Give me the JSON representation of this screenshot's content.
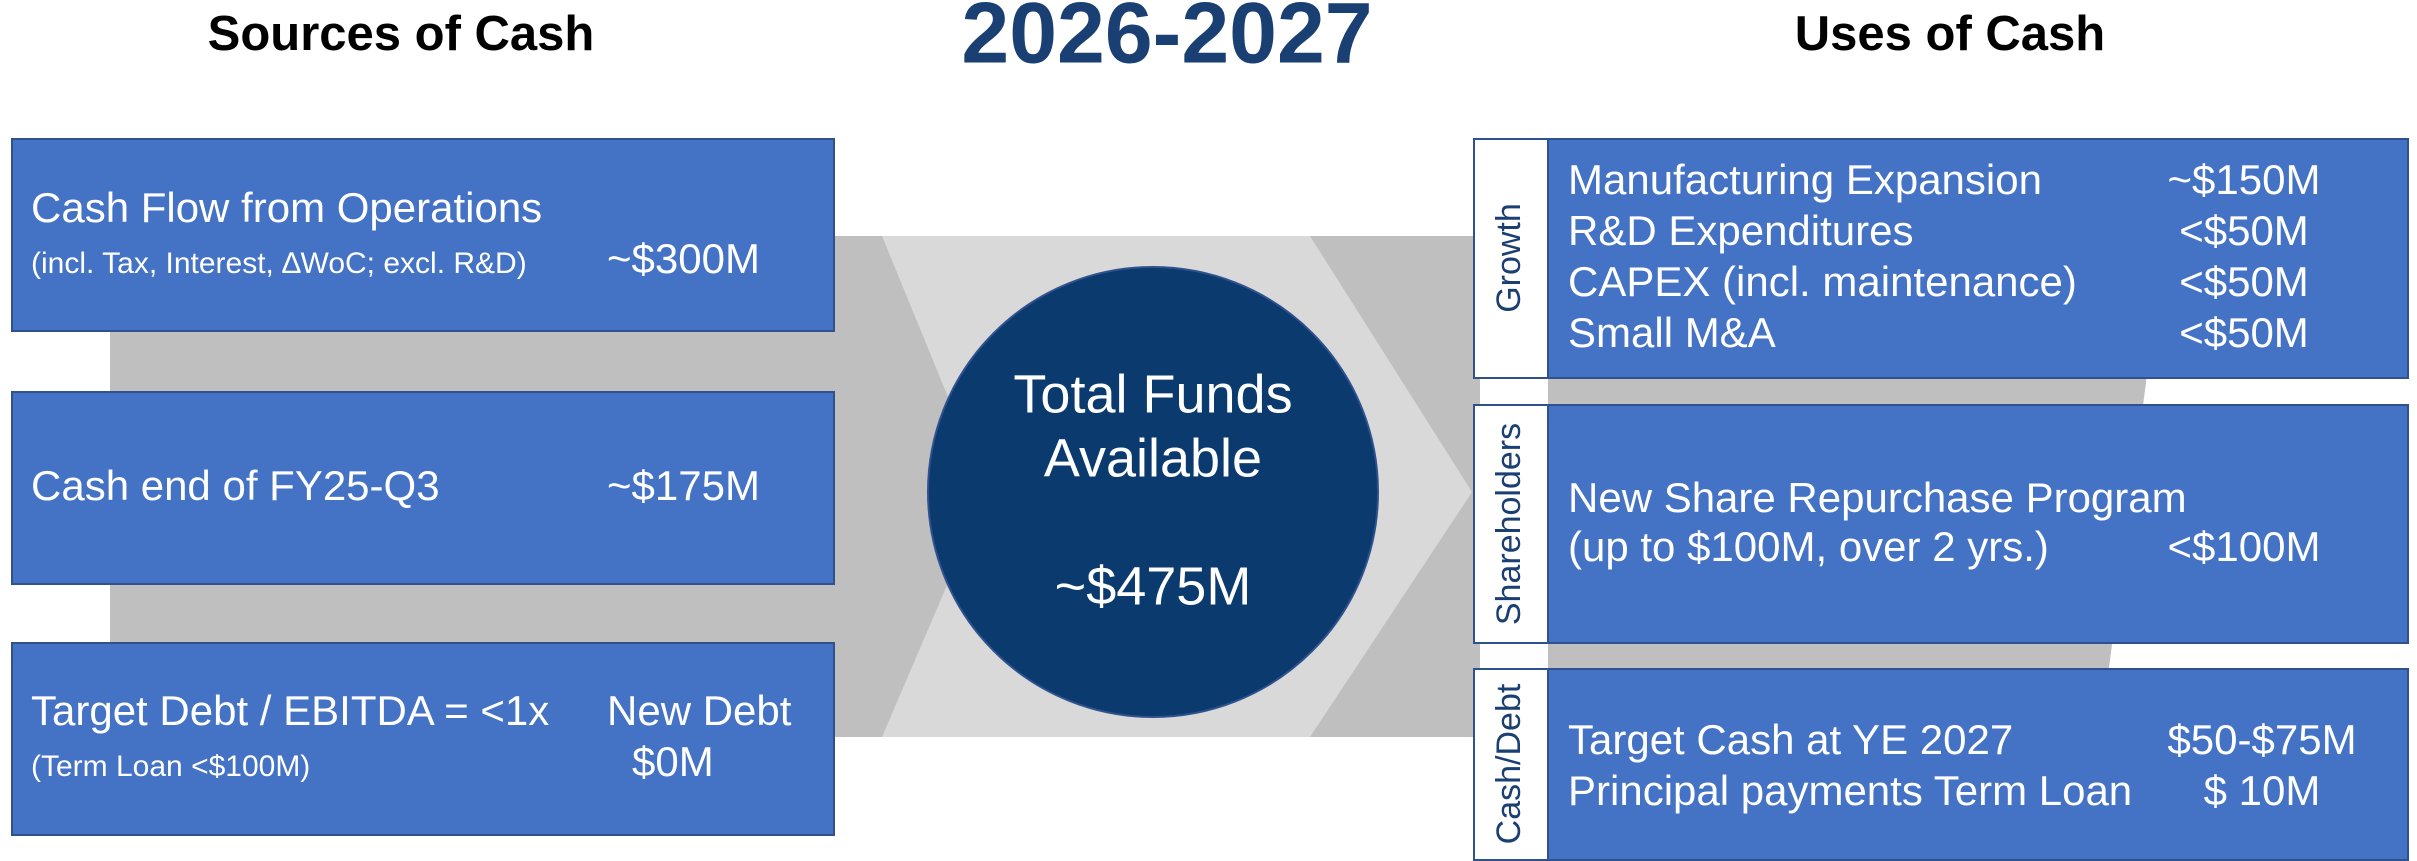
{
  "header": {
    "left_title": "Sources of Cash",
    "center_title": "2026-2027",
    "right_title": "Uses of Cash"
  },
  "sources": [
    {
      "label": "Cash Flow from Operations",
      "note": "(incl. Tax, Interest, ∆WoC; excl. R&D)",
      "amount": "~$300M"
    },
    {
      "label": "Cash end of FY25-Q3",
      "amount": "~$175M"
    },
    {
      "label": "Target Debt / EBITDA = <1x",
      "note": "(Term Loan <$100M)",
      "amount_label": "New Debt",
      "amount": "$0M"
    }
  ],
  "center": {
    "title_lines": [
      "Total Funds",
      "Available"
    ],
    "amount": "~$475M"
  },
  "uses": [
    {
      "category": "Growth",
      "items": [
        {
          "label": "Manufacturing Expansion",
          "amount": "~$150M"
        },
        {
          "label": "R&D Expenditures",
          "amount": "<$50M"
        },
        {
          "label": "CAPEX (incl. maintenance)",
          "amount": "<$50M"
        },
        {
          "label": "Small M&A",
          "amount": "<$50M"
        }
      ]
    },
    {
      "category": "Shareholders",
      "items": [
        {
          "label": "New Share Repurchase Program"
        },
        {
          "label": "(up to $100M, over 2 yrs.)",
          "amount": "<$100M"
        }
      ]
    },
    {
      "category": "Cash/Debt",
      "items": [
        {
          "label": "Target Cash at YE 2027",
          "amount": "$50-$75M"
        },
        {
          "label": "Principal payments Term Loan",
          "amount": "$ 10M"
        }
      ]
    }
  ]
}
